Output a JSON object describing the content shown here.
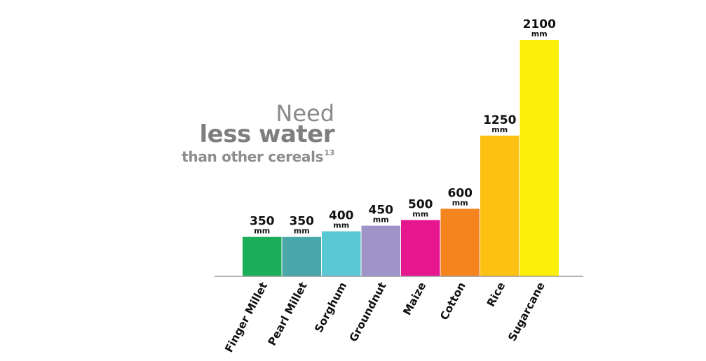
{
  "headline": {
    "line1": "Need",
    "line2": "less water",
    "line3": "than other cereals",
    "footnote": "13"
  },
  "chart_data": {
    "type": "bar",
    "title": "",
    "xlabel": "",
    "ylabel": "",
    "ylim": [
      0,
      2100
    ],
    "unit": "mm",
    "categories": [
      "Finger Millet",
      "Pearl Millet",
      "Sorghum",
      "Groundnut",
      "Maize",
      "Cotton",
      "Rice",
      "Sugarcane"
    ],
    "values": [
      350,
      350,
      400,
      450,
      500,
      600,
      1250,
      2100
    ],
    "value_labels": [
      "350",
      "350",
      "400",
      "450",
      "500",
      "600",
      "1250",
      "2100"
    ],
    "colors": [
      "#1aad5a",
      "#4aa7a9",
      "#5ac8d2",
      "#9e94c8",
      "#e6168f",
      "#f4841e",
      "#fcc113",
      "#fcef0a"
    ]
  }
}
